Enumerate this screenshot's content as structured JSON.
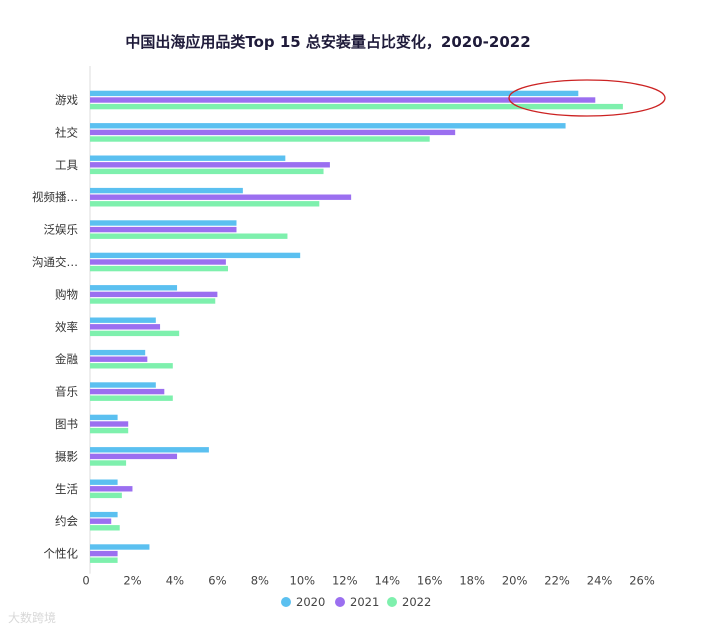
{
  "chart_data": {
    "type": "bar",
    "orientation": "horizontal",
    "title": "中国出海应用品类Top 15 总安装量占比变化，2020-2022",
    "categories": [
      "游戏",
      "社交",
      "工具",
      "视频播…",
      "泛娱乐",
      "沟通交…",
      "购物",
      "效率",
      "金融",
      "音乐",
      "图书",
      "摄影",
      "生活",
      "约会",
      "个性化"
    ],
    "series": [
      {
        "name": "2020",
        "color": "#5bc0f0",
        "values": [
          23.0,
          22.4,
          9.2,
          7.2,
          6.9,
          9.9,
          4.1,
          3.1,
          2.6,
          3.1,
          1.3,
          5.6,
          1.3,
          1.3,
          2.8
        ]
      },
      {
        "name": "2021",
        "color": "#9b6ff0",
        "values": [
          23.8,
          17.2,
          11.3,
          12.3,
          6.9,
          6.4,
          6.0,
          3.3,
          2.7,
          3.5,
          1.8,
          4.1,
          2.0,
          1.0,
          1.3
        ]
      },
      {
        "name": "2022",
        "color": "#7ef0ad",
        "values": [
          25.1,
          16.0,
          11.0,
          10.8,
          9.3,
          6.5,
          5.9,
          4.2,
          3.9,
          3.9,
          1.8,
          1.7,
          1.5,
          1.4,
          1.3
        ]
      }
    ],
    "xlim": [
      0,
      26
    ],
    "xticks": [
      "0",
      "2%",
      "4%",
      "6%",
      "8%",
      "10%",
      "12%",
      "14%",
      "16%",
      "18%",
      "20%",
      "22%",
      "24%",
      "26%"
    ],
    "grid": false,
    "legend_position": "bottom",
    "annotation": {
      "shape": "ellipse",
      "color": "#cc2222",
      "target_category": "游戏"
    }
  },
  "watermark": "大数跨境"
}
